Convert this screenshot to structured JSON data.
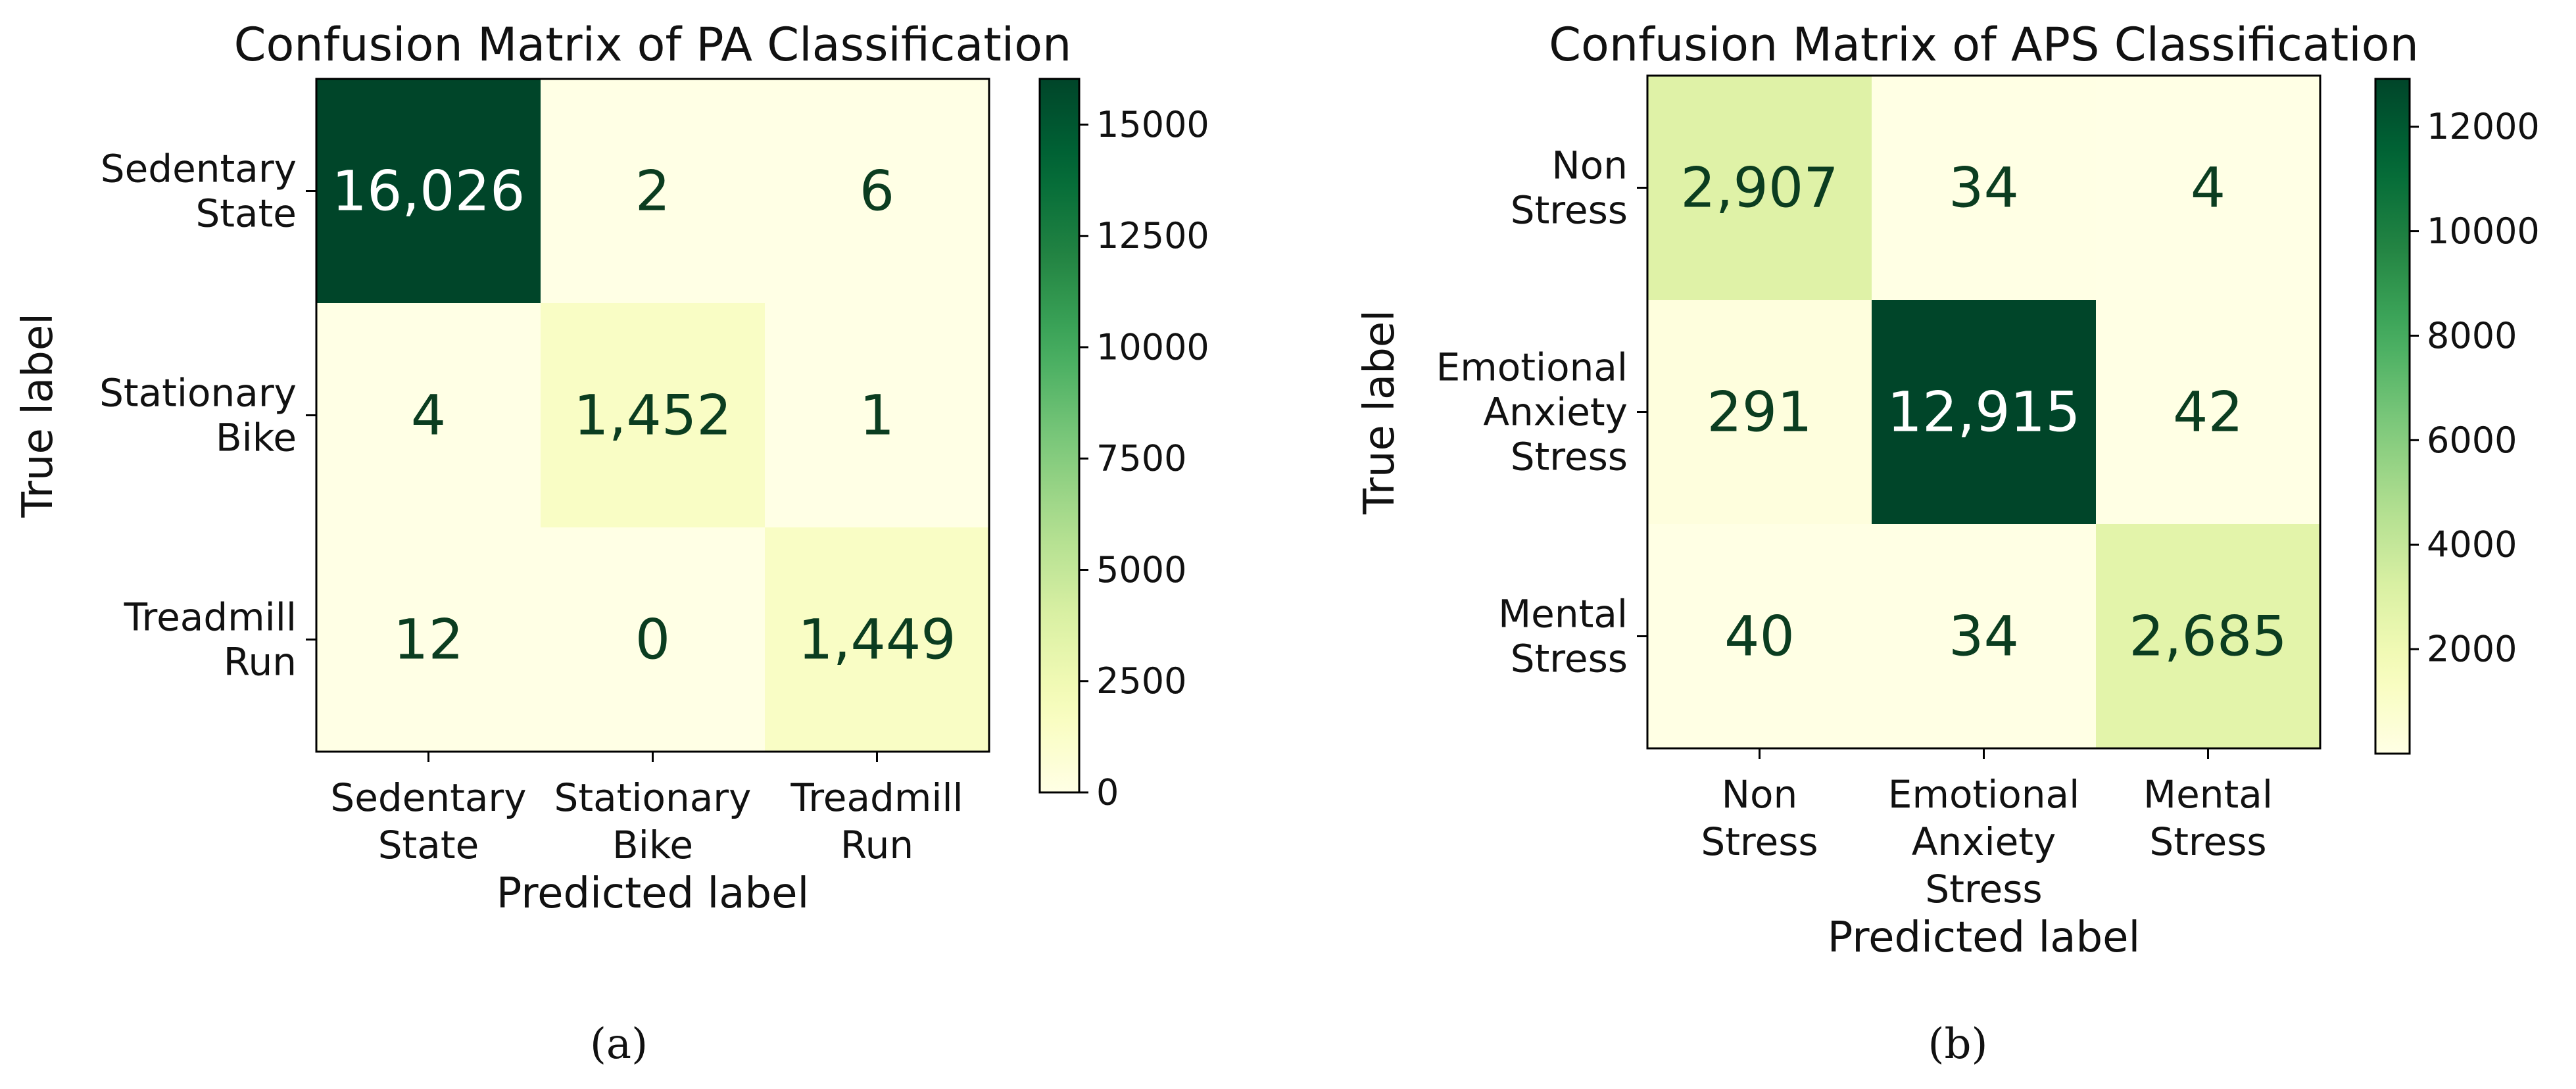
{
  "chart_data": [
    {
      "type": "heatmap",
      "panel_label": "(a)",
      "title": "Confusion Matrix of PA Classification",
      "xlabel": "Predicted label",
      "ylabel": "True label",
      "x_categories": [
        [
          "Sedentary",
          "State"
        ],
        [
          "Stationary",
          "Bike"
        ],
        [
          "Treadmill",
          "Run"
        ]
      ],
      "y_categories": [
        [
          "Sedentary",
          "State"
        ],
        [
          "Stationary",
          "Bike"
        ],
        [
          "Treadmill",
          "Run"
        ]
      ],
      "values": [
        [
          16026,
          2,
          6
        ],
        [
          4,
          1452,
          1
        ],
        [
          12,
          0,
          1449
        ]
      ],
      "cell_labels": [
        [
          "16,026",
          "2",
          "6"
        ],
        [
          "4",
          "1,452",
          "1"
        ],
        [
          "12",
          "0",
          "1,449"
        ]
      ],
      "colorscale": "YlGn",
      "colorbar": {
        "range": [
          0,
          16026
        ],
        "ticks": [
          0,
          2500,
          5000,
          7500,
          10000,
          12500,
          15000
        ],
        "tick_labels": [
          "0",
          "2500",
          "5000",
          "7500",
          "10000",
          "12500",
          "15000"
        ]
      },
      "grid": false
    },
    {
      "type": "heatmap",
      "panel_label": "(b)",
      "title": "Confusion Matrix of APS Classification",
      "xlabel": "Predicted label",
      "ylabel": "True label",
      "x_categories": [
        [
          "Non",
          "Stress"
        ],
        [
          "Emotional",
          "Anxiety",
          "Stress"
        ],
        [
          "Mental",
          "Stress"
        ]
      ],
      "y_categories": [
        [
          "Non",
          "Stress"
        ],
        [
          "Emotional",
          "Anxiety",
          "Stress"
        ],
        [
          "Mental",
          "Stress"
        ]
      ],
      "values": [
        [
          2907,
          34,
          4
        ],
        [
          291,
          12915,
          42
        ],
        [
          40,
          34,
          2685
        ]
      ],
      "cell_labels": [
        [
          "2,907",
          "34",
          "4"
        ],
        [
          "291",
          "12,915",
          "42"
        ],
        [
          "40",
          "34",
          "2,685"
        ]
      ],
      "colorscale": "YlGn",
      "colorbar": {
        "range": [
          0,
          12915
        ],
        "ticks": [
          2000,
          4000,
          6000,
          8000,
          10000,
          12000
        ],
        "tick_labels": [
          "2000",
          "4000",
          "6000",
          "8000",
          "10000",
          "12000"
        ]
      },
      "grid": false
    }
  ]
}
